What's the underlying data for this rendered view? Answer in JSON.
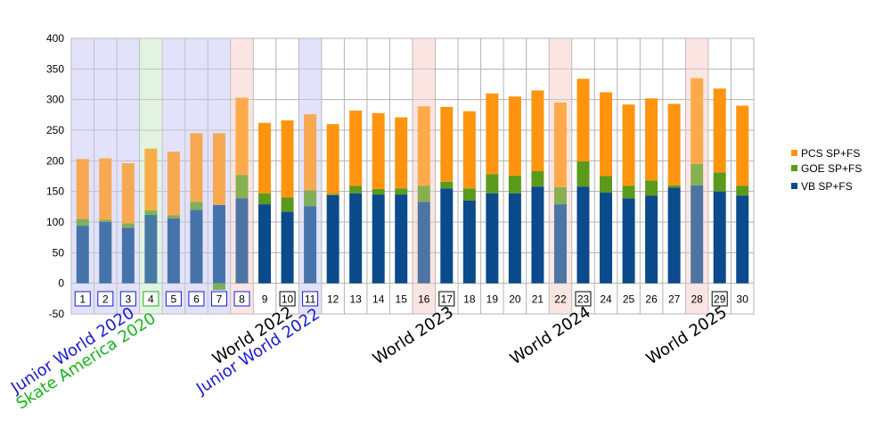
{
  "colors": {
    "vb": "#0b4a8b",
    "goe": "#5a9a1c",
    "pcs": "#ff9410",
    "band_junior": "#e2e2fb",
    "band_skate_america": "#e2f3e2",
    "band_world": "#fbe5e2",
    "label_junior": "#1a1ad6",
    "label_skate_america": "#1ab31a",
    "label_world": "#000000"
  },
  "chart_data": {
    "type": "bar",
    "stacked": true,
    "categories": [
      "1",
      "2",
      "3",
      "4",
      "5",
      "6",
      "7",
      "8",
      "9",
      "10",
      "11",
      "12",
      "13",
      "14",
      "15",
      "16",
      "17",
      "18",
      "19",
      "20",
      "21",
      "22",
      "23",
      "24",
      "25",
      "26",
      "27",
      "28",
      "29",
      "30"
    ],
    "boxed_categories": {
      "junior": [
        1,
        2,
        3,
        5,
        6,
        7,
        8,
        11
      ],
      "skate_america": [
        4
      ],
      "world": [
        10,
        17,
        23,
        29
      ]
    },
    "series": [
      {
        "name": "VB SP+FS",
        "color_key": "vb",
        "values": [
          94,
          100,
          91,
          112,
          106,
          120,
          128,
          139,
          129,
          117,
          126,
          144,
          147,
          145,
          145,
          133,
          155,
          135,
          147,
          147,
          158,
          129,
          158,
          148,
          139,
          143,
          156,
          160,
          150,
          143
        ]
      },
      {
        "name": "GOE SP+FS",
        "color_key": "goe",
        "values": [
          11,
          4,
          7,
          7,
          5,
          13,
          -11,
          38,
          18,
          23,
          26,
          2,
          12,
          9,
          10,
          26,
          11,
          20,
          31,
          29,
          25,
          28,
          41,
          27,
          20,
          25,
          4,
          35,
          31,
          16
        ]
      },
      {
        "name": "PCS SP+FS",
        "color_key": "pcs",
        "values": [
          98,
          100,
          98,
          101,
          104,
          112,
          117,
          126,
          115,
          126,
          124,
          114,
          123,
          124,
          116,
          130,
          122,
          126,
          132,
          129,
          132,
          138,
          135,
          137,
          133,
          134,
          133,
          140,
          137,
          131
        ]
      }
    ],
    "ylim": [
      -50,
      400
    ],
    "yticks": [
      -50,
      0,
      50,
      100,
      150,
      200,
      250,
      300,
      350,
      400
    ],
    "grid": true,
    "legend_position": "right",
    "legend_order": [
      "PCS SP+FS",
      "GOE SP+FS",
      "VB SP+FS"
    ],
    "bands": [
      {
        "from": 1,
        "to": 3,
        "kind": "junior"
      },
      {
        "from": 4,
        "to": 4,
        "kind": "skate_america"
      },
      {
        "from": 5,
        "to": 7,
        "kind": "junior"
      },
      {
        "from": 8,
        "to": 8,
        "kind": "world"
      },
      {
        "from": 11,
        "to": 11,
        "kind": "junior"
      },
      {
        "from": 16,
        "to": 16,
        "kind": "world"
      },
      {
        "from": 22,
        "to": 22,
        "kind": "world"
      },
      {
        "from": 28,
        "to": 28,
        "kind": "world"
      }
    ],
    "annotations": [
      {
        "text": "Junior World 2020",
        "kind": "junior",
        "anchor": 2
      },
      {
        "text": "Skate America 2020",
        "kind": "skate_america",
        "anchor": 4
      },
      {
        "text": "World 2022",
        "kind": "world",
        "anchor": 10
      },
      {
        "text": "Junior World 2022",
        "kind": "junior",
        "anchor": 11
      },
      {
        "text": "World 2023",
        "kind": "world",
        "anchor": 17
      },
      {
        "text": "World 2024",
        "kind": "world",
        "anchor": 23
      },
      {
        "text": "World 2025",
        "kind": "world",
        "anchor": 29
      }
    ]
  }
}
